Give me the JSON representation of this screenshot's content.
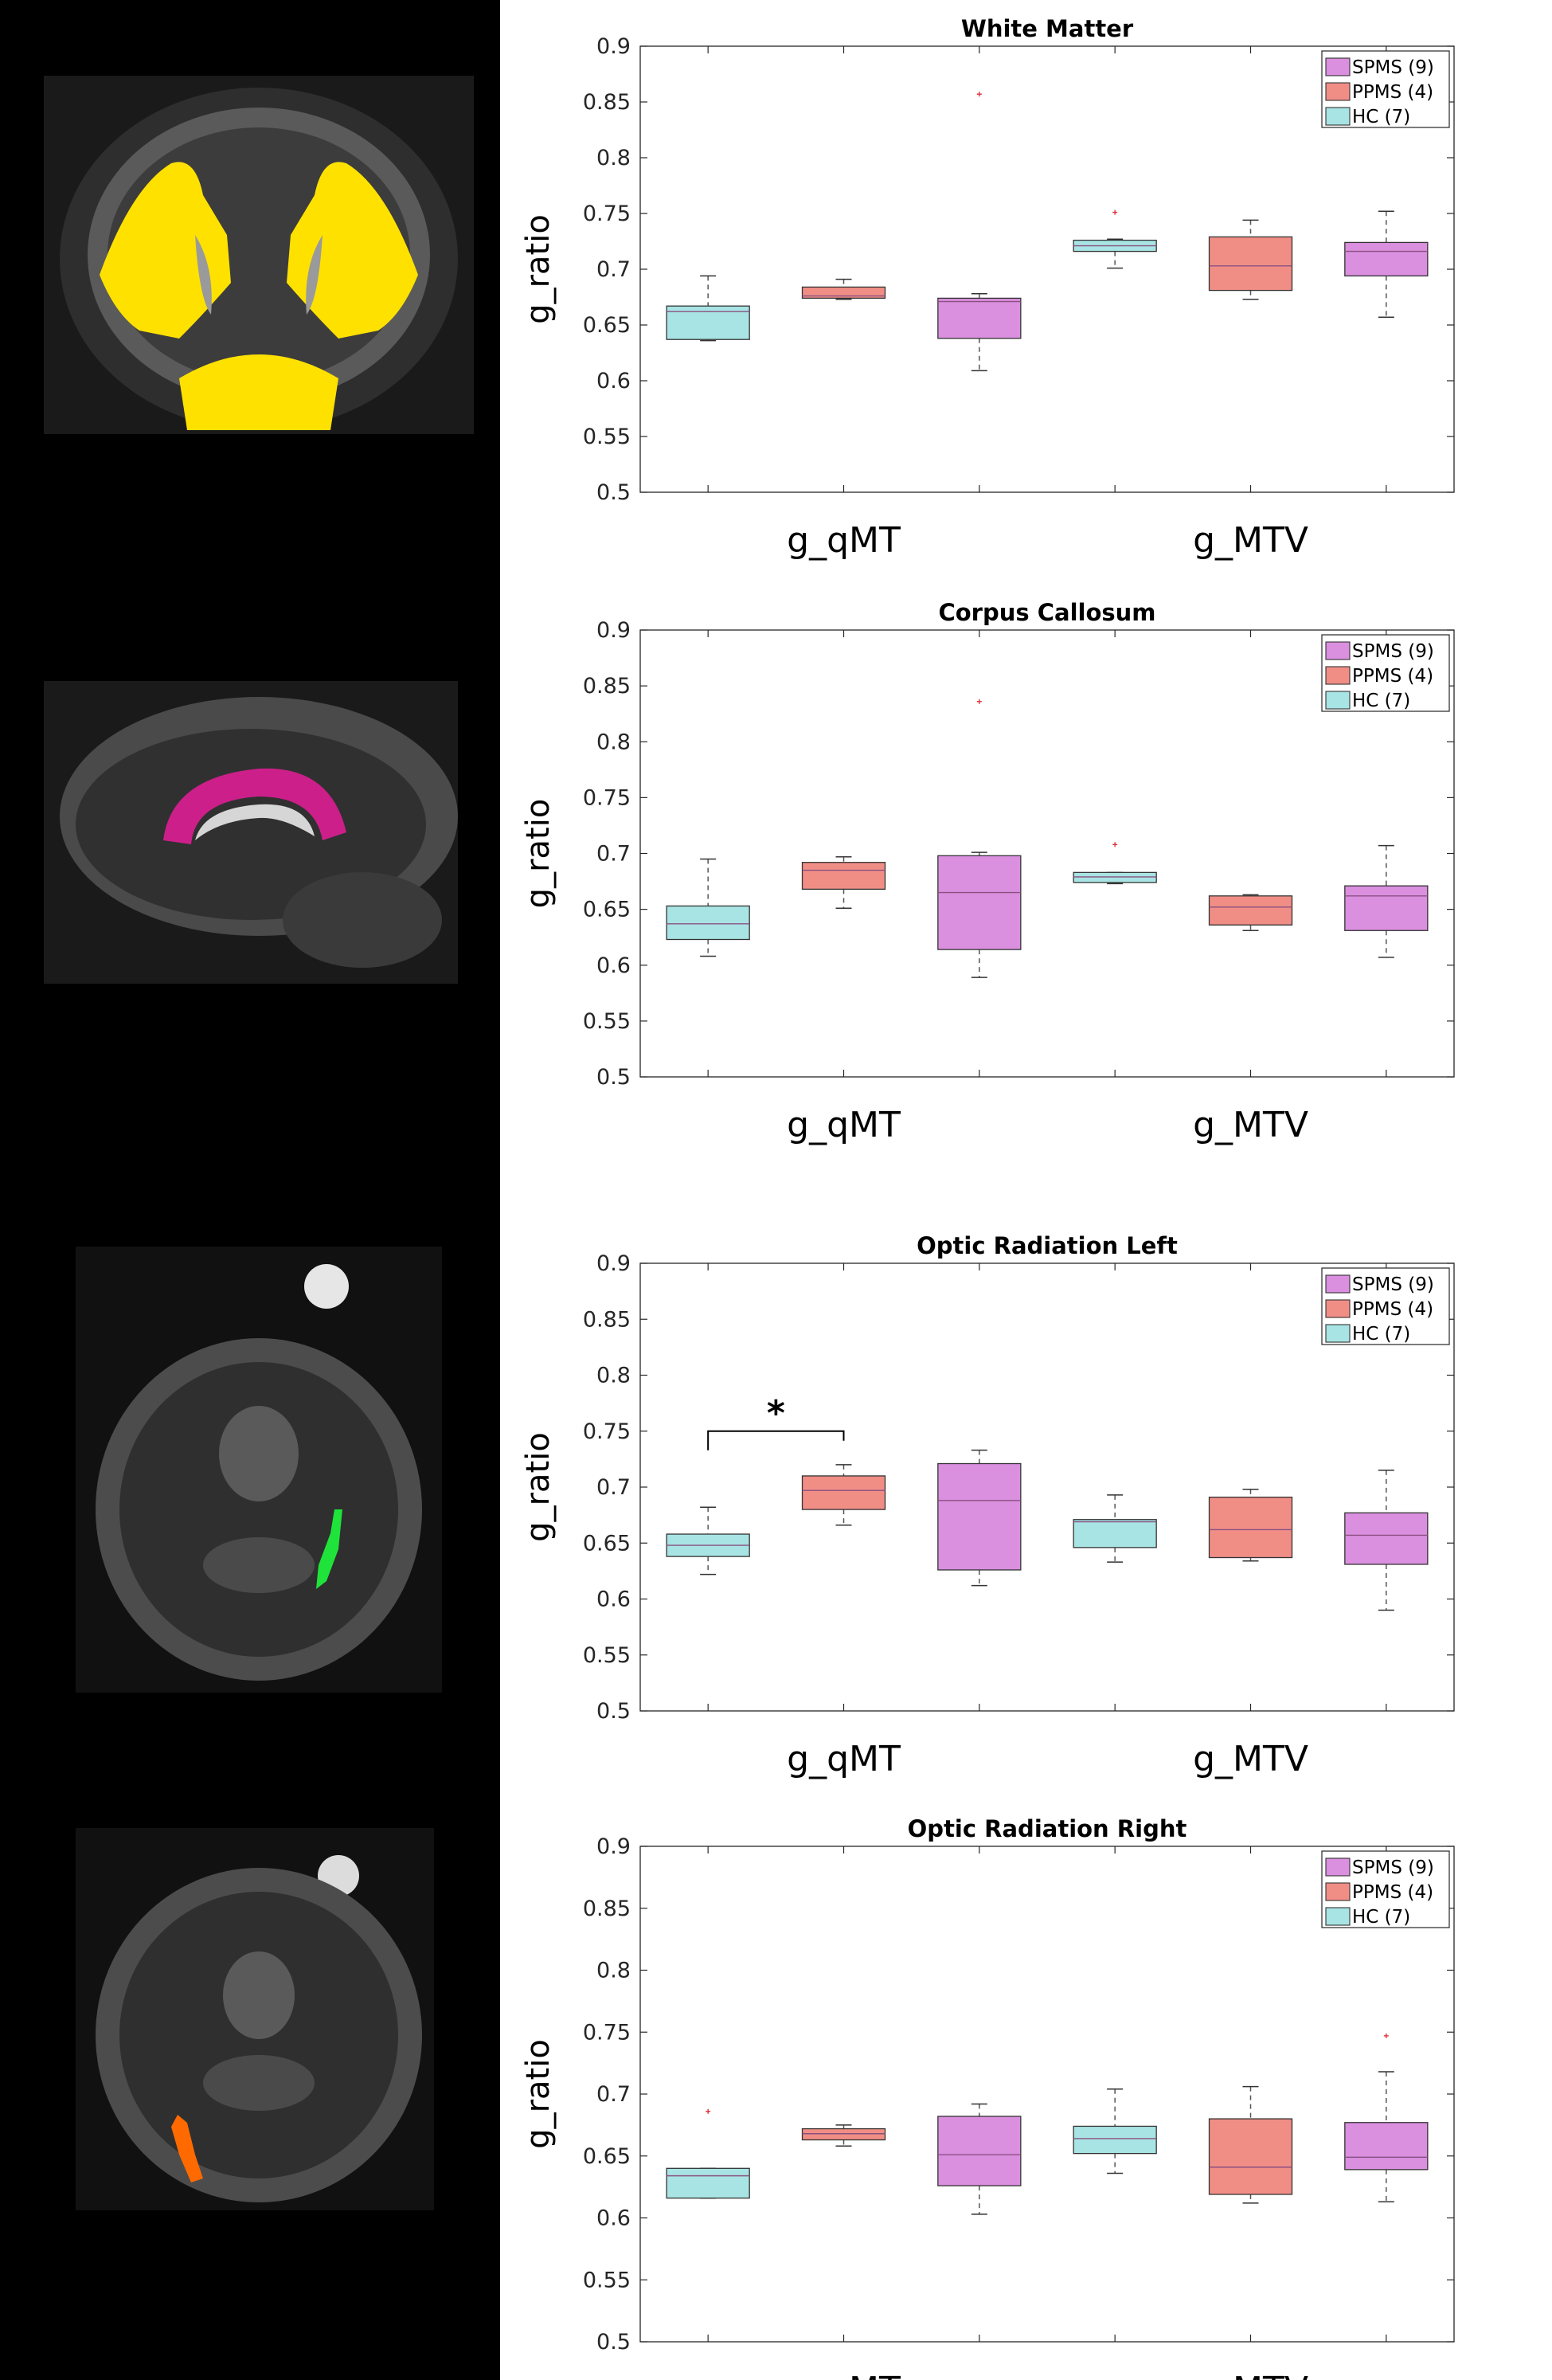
{
  "colors": {
    "SPMS": "#da8fdf",
    "PPMS": "#f08e86",
    "HC": "#a8e4e4",
    "outlier": "#e0303a",
    "wm_mask": "#ffe100",
    "cc_mask": "#cc1f8a",
    "orl_mask": "#1fe33a",
    "orr_mask": "#ff6a00"
  },
  "legend_entries": [
    "SPMS (9)",
    "PPMS (4)",
    "HC (7)"
  ],
  "chart_data": [
    {
      "type": "box",
      "title": "White Matter",
      "ylabel": "g_ratio",
      "categories": [
        "g_qMT",
        "g_MTV"
      ],
      "ylim": [
        0.5,
        0.9
      ],
      "yticks": [
        "0.5",
        "0.55",
        "0.6",
        "0.65",
        "0.7",
        "0.75",
        "0.8",
        "0.85",
        "0.9"
      ],
      "legend": "top-right",
      "boxes": [
        {
          "group": "HC",
          "category": "g_qMT",
          "min": 0.636,
          "q1": 0.637,
          "median": 0.662,
          "q3": 0.667,
          "max": 0.694,
          "outliers": []
        },
        {
          "group": "PPMS",
          "category": "g_qMT",
          "min": 0.673,
          "q1": 0.674,
          "median": 0.676,
          "q3": 0.684,
          "max": 0.691,
          "outliers": []
        },
        {
          "group": "SPMS",
          "category": "g_qMT",
          "min": 0.609,
          "q1": 0.638,
          "median": 0.671,
          "q3": 0.674,
          "max": 0.678,
          "outliers": [
            0.857
          ]
        },
        {
          "group": "HC",
          "category": "g_MTV",
          "min": 0.701,
          "q1": 0.716,
          "median": 0.721,
          "q3": 0.726,
          "max": 0.727,
          "outliers": [
            0.751
          ]
        },
        {
          "group": "PPMS",
          "category": "g_MTV",
          "min": 0.673,
          "q1": 0.681,
          "median": 0.703,
          "q3": 0.729,
          "max": 0.744,
          "outliers": []
        },
        {
          "group": "SPMS",
          "category": "g_MTV",
          "min": 0.657,
          "q1": 0.694,
          "median": 0.716,
          "q3": 0.724,
          "max": 0.752,
          "outliers": []
        }
      ]
    },
    {
      "type": "box",
      "title": "Corpus Callosum",
      "ylabel": "g_ratio",
      "categories": [
        "g_qMT",
        "g_MTV"
      ],
      "ylim": [
        0.5,
        0.9
      ],
      "yticks": [
        "0.5",
        "0.55",
        "0.6",
        "0.65",
        "0.7",
        "0.75",
        "0.8",
        "0.85",
        "0.9"
      ],
      "legend": "top-right",
      "boxes": [
        {
          "group": "HC",
          "category": "g_qMT",
          "min": 0.608,
          "q1": 0.623,
          "median": 0.637,
          "q3": 0.653,
          "max": 0.695,
          "outliers": []
        },
        {
          "group": "PPMS",
          "category": "g_qMT",
          "min": 0.651,
          "q1": 0.668,
          "median": 0.685,
          "q3": 0.692,
          "max": 0.697,
          "outliers": []
        },
        {
          "group": "SPMS",
          "category": "g_qMT",
          "min": 0.589,
          "q1": 0.614,
          "median": 0.665,
          "q3": 0.698,
          "max": 0.701,
          "outliers": [
            0.836
          ]
        },
        {
          "group": "HC",
          "category": "g_MTV",
          "min": 0.673,
          "q1": 0.674,
          "median": 0.679,
          "q3": 0.683,
          "max": 0.683,
          "outliers": [
            0.708
          ]
        },
        {
          "group": "PPMS",
          "category": "g_MTV",
          "min": 0.631,
          "q1": 0.636,
          "median": 0.652,
          "q3": 0.662,
          "max": 0.663,
          "outliers": []
        },
        {
          "group": "SPMS",
          "category": "g_MTV",
          "min": 0.607,
          "q1": 0.631,
          "median": 0.662,
          "q3": 0.671,
          "max": 0.707,
          "outliers": []
        }
      ]
    },
    {
      "type": "box",
      "title": "Optic Radiation Left",
      "ylabel": "g_ratio",
      "categories": [
        "g_qMT",
        "g_MTV"
      ],
      "ylim": [
        0.5,
        0.9
      ],
      "yticks": [
        "0.5",
        "0.55",
        "0.6",
        "0.65",
        "0.7",
        "0.75",
        "0.8",
        "0.85",
        "0.9"
      ],
      "legend": "top-right",
      "significance": {
        "label": "*",
        "from_box": 0,
        "to_box": 1,
        "level": 0.75
      },
      "boxes": [
        {
          "group": "HC",
          "category": "g_qMT",
          "min": 0.622,
          "q1": 0.638,
          "median": 0.648,
          "q3": 0.658,
          "max": 0.682,
          "outliers": []
        },
        {
          "group": "PPMS",
          "category": "g_qMT",
          "min": 0.666,
          "q1": 0.68,
          "median": 0.697,
          "q3": 0.71,
          "max": 0.72,
          "outliers": []
        },
        {
          "group": "SPMS",
          "category": "g_qMT",
          "min": 0.612,
          "q1": 0.626,
          "median": 0.688,
          "q3": 0.721,
          "max": 0.733,
          "outliers": []
        },
        {
          "group": "HC",
          "category": "g_MTV",
          "min": 0.633,
          "q1": 0.646,
          "median": 0.669,
          "q3": 0.671,
          "max": 0.693,
          "outliers": []
        },
        {
          "group": "PPMS",
          "category": "g_MTV",
          "min": 0.634,
          "q1": 0.637,
          "median": 0.662,
          "q3": 0.691,
          "max": 0.698,
          "outliers": []
        },
        {
          "group": "SPMS",
          "category": "g_MTV",
          "min": 0.59,
          "q1": 0.631,
          "median": 0.657,
          "q3": 0.677,
          "max": 0.715,
          "outliers": []
        }
      ]
    },
    {
      "type": "box",
      "title": "Optic Radiation Right",
      "ylabel": "g_ratio",
      "categories": [
        "g_qMT",
        "g_MTV"
      ],
      "ylim": [
        0.5,
        0.9
      ],
      "yticks": [
        "0.5",
        "0.55",
        "0.6",
        "0.65",
        "0.7",
        "0.75",
        "0.8",
        "0.85",
        "0.9"
      ],
      "legend": "top-right",
      "boxes": [
        {
          "group": "HC",
          "category": "g_qMT",
          "min": 0.616,
          "q1": 0.616,
          "median": 0.634,
          "q3": 0.64,
          "max": 0.64,
          "outliers": [
            0.686
          ]
        },
        {
          "group": "PPMS",
          "category": "g_qMT",
          "min": 0.658,
          "q1": 0.663,
          "median": 0.668,
          "q3": 0.672,
          "max": 0.675,
          "outliers": []
        },
        {
          "group": "SPMS",
          "category": "g_qMT",
          "min": 0.603,
          "q1": 0.626,
          "median": 0.651,
          "q3": 0.682,
          "max": 0.692,
          "outliers": []
        },
        {
          "group": "HC",
          "category": "g_MTV",
          "min": 0.636,
          "q1": 0.652,
          "median": 0.664,
          "q3": 0.674,
          "max": 0.704,
          "outliers": []
        },
        {
          "group": "PPMS",
          "category": "g_MTV",
          "min": 0.612,
          "q1": 0.619,
          "median": 0.641,
          "q3": 0.68,
          "max": 0.706,
          "outliers": []
        },
        {
          "group": "SPMS",
          "category": "g_MTV",
          "min": 0.613,
          "q1": 0.639,
          "median": 0.649,
          "q3": 0.677,
          "max": 0.718,
          "outliers": [
            0.747
          ]
        }
      ]
    }
  ]
}
